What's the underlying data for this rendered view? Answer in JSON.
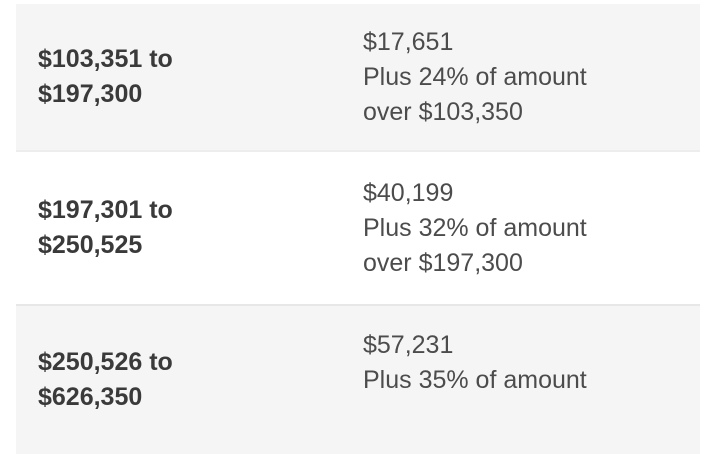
{
  "colors": {
    "page_bg": "#ffffff",
    "row_alt_bg": "#f5f5f5",
    "row_bg": "#ffffff",
    "divider_1": "#ededed",
    "divider_2": "#e7e7e7",
    "range_text_color": "#3a3a3a",
    "tax_text_color": "#4c4c4c"
  },
  "table": {
    "rows": [
      {
        "range_lines": [
          "$103,351 to",
          "$197,300"
        ],
        "tax_lines": [
          "$17,651",
          "Plus 24% of amount",
          "over $103,350"
        ]
      },
      {
        "range_lines": [
          "$197,301 to",
          "$250,525"
        ],
        "tax_lines": [
          "$40,199",
          "Plus 32% of amount",
          "over $197,300"
        ]
      },
      {
        "range_lines": [
          "$250,526 to",
          "$626,350"
        ],
        "tax_lines": [
          "$57,231",
          "Plus 35% of amount",
          ""
        ]
      }
    ]
  }
}
